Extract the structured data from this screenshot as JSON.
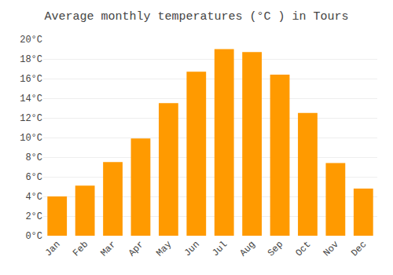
{
  "chart_data": {
    "type": "bar",
    "title": "Average monthly temperatures (°C ) in Tours",
    "categories": [
      "Jan",
      "Feb",
      "Mar",
      "Apr",
      "May",
      "Jun",
      "Jul",
      "Aug",
      "Sep",
      "Oct",
      "Nov",
      "Dec"
    ],
    "values": [
      4.0,
      5.1,
      7.5,
      9.9,
      13.5,
      16.7,
      19.0,
      18.7,
      16.4,
      12.5,
      7.4,
      4.8
    ],
    "color": "#FF9A00",
    "ylim": [
      0,
      20
    ],
    "yticks": [
      {
        "value": 0,
        "label": "0°C"
      },
      {
        "value": 2,
        "label": "2°C"
      },
      {
        "value": 4,
        "label": "4°C"
      },
      {
        "value": 6,
        "label": "6°C"
      },
      {
        "value": 8,
        "label": "8°C"
      },
      {
        "value": 10,
        "label": "10°C"
      },
      {
        "value": 12,
        "label": "12°C"
      },
      {
        "value": 14,
        "label": "14°C"
      },
      {
        "value": 16,
        "label": "16°C"
      },
      {
        "value": 18,
        "label": "18°C"
      },
      {
        "value": 20,
        "label": "20°C"
      }
    ],
    "grid": true
  }
}
